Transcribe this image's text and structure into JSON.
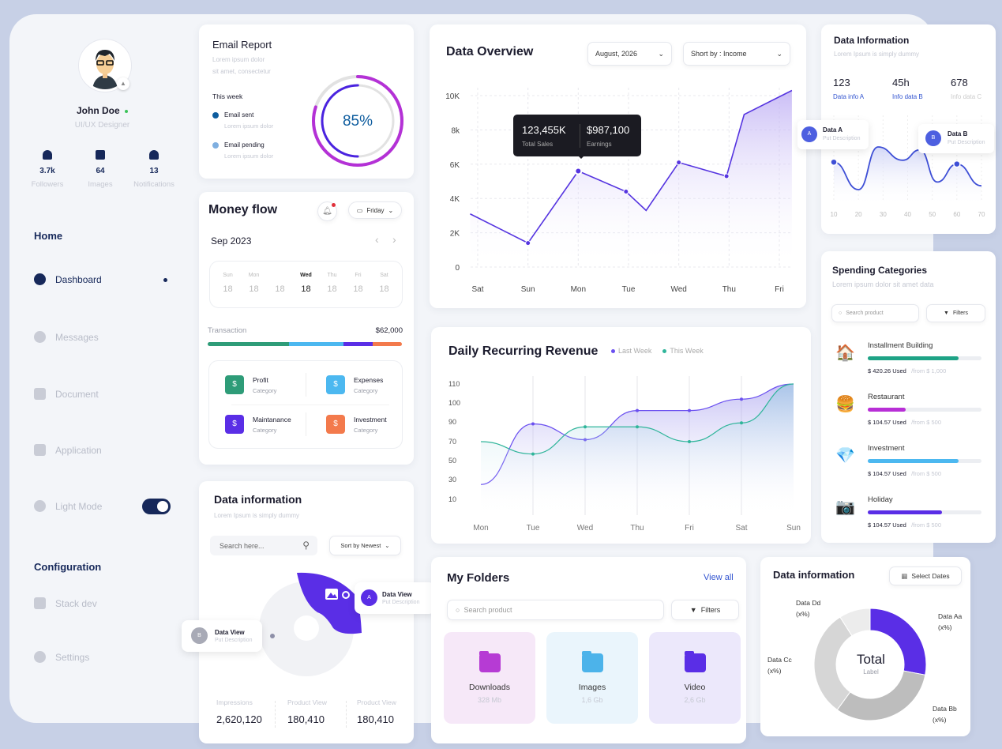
{
  "profile": {
    "name": "John Doe",
    "role": "UI/UX Designer",
    "stats": [
      {
        "value": "3.7k",
        "label": "Followers",
        "icon": "user-icon"
      },
      {
        "value": "64",
        "label": "Images",
        "icon": "image-icon"
      },
      {
        "value": "13",
        "label": "Notifications",
        "icon": "bell-icon"
      }
    ]
  },
  "sidebar": {
    "home_heading": "Home",
    "items": [
      {
        "label": "Dashboard",
        "icon": "home-icon",
        "active": true
      },
      {
        "label": "Messages",
        "icon": "lightning-icon"
      },
      {
        "label": "Document",
        "icon": "document-icon"
      },
      {
        "label": "Application",
        "icon": "grid-icon"
      },
      {
        "label": "Light Mode",
        "icon": "contrast-icon",
        "toggle": true
      }
    ],
    "config_heading": "Configuration",
    "config_items": [
      {
        "label": "Stack dev",
        "icon": "layers-icon"
      },
      {
        "label": "Settings",
        "icon": "gear-icon"
      }
    ]
  },
  "email_report": {
    "title": "Email Report",
    "desc1": "Lorem ipsum dolor",
    "desc2": "sit amet, consectetur",
    "week": "This week",
    "items": [
      {
        "label": "Email sent",
        "desc": "Lorem ipsum dolor",
        "color": "#0d5c9e"
      },
      {
        "label": "Email pending",
        "desc": "Lorem ipsum dolor",
        "color": "#7fafe0"
      }
    ],
    "percent": "85%",
    "outer_fill": 0.8,
    "inner_fill": 0.5
  },
  "money_flow": {
    "title": "Money flow",
    "day_select": "Friday",
    "month": "Sep 2023",
    "days": [
      {
        "d": "Sun",
        "n": "18"
      },
      {
        "d": "Mon",
        "n": "18"
      },
      {
        "d": "",
        "n": "18"
      },
      {
        "d": "Wed",
        "n": "18",
        "active": true
      },
      {
        "d": "Thu",
        "n": "18"
      },
      {
        "d": "Fri",
        "n": "18"
      },
      {
        "d": "Sat",
        "n": "18"
      }
    ],
    "transaction_label": "Transaction",
    "transaction_value": "$62,000",
    "segments": [
      {
        "share": 0.42,
        "color": "#2e9c78"
      },
      {
        "share": 0.28,
        "color": "#4cb8f0"
      },
      {
        "share": 0.15,
        "color": "#5a2ee6"
      },
      {
        "share": 0.15,
        "color": "#f37a4c"
      }
    ],
    "categories": [
      {
        "name": "Profit",
        "sub": "Category",
        "color": "#2e9c78",
        "icon": "dollar-icon"
      },
      {
        "name": "Expenses",
        "sub": "Category",
        "color": "#4cb8f0",
        "icon": "refund-icon"
      },
      {
        "name": "Maintanance",
        "sub": "Category",
        "color": "#5a2ee6",
        "icon": "building-icon"
      },
      {
        "name": "Investment",
        "sub": "Category",
        "color": "#f37a4c",
        "icon": "money-bag-icon"
      }
    ]
  },
  "data_info_left": {
    "title": "Data information",
    "subtitle": "Lorem Ipsum is simply dummy",
    "search_placeholder": "Search here...",
    "sort": "Sort by Newest",
    "callout_a": {
      "badge": "A",
      "title": "Data View",
      "desc": "Put Description"
    },
    "callout_b": {
      "badge": "B",
      "title": "Data View",
      "desc": "Put Description"
    },
    "stats": [
      {
        "label": "Impressions",
        "value": "2,620,120"
      },
      {
        "label": "Product View",
        "value": "180,410"
      },
      {
        "label": "Product View",
        "value": "180,410"
      }
    ]
  },
  "data_overview": {
    "title": "Data Overview",
    "date_select": "August, 2026",
    "sort_select": "Short by : Income",
    "tooltip": {
      "sales": "123,455K",
      "sales_label": "Total Sales",
      "earnings": "$987,100",
      "earnings_label": "Earnings"
    }
  },
  "drr": {
    "title": "Daily Recurring Revenue",
    "legend": [
      {
        "label": "Last Week",
        "color": "#6a4ff0"
      },
      {
        "label": "This Week",
        "color": "#2fb59a"
      }
    ]
  },
  "data_info_right": {
    "title": "Data Information",
    "subtitle": "Lorem Ipsum is simply dummy",
    "stats": [
      {
        "value": "123",
        "label": "Data info A"
      },
      {
        "value": "45h",
        "label": "Info data B"
      },
      {
        "value": "678",
        "label": "Info data C"
      }
    ],
    "callout_a": {
      "badge": "A",
      "title": "Data A",
      "desc": "Put Description"
    },
    "callout_b": {
      "badge": "B",
      "title": "Data B",
      "desc": "Put Description"
    }
  },
  "spending": {
    "title": "Spending Categories",
    "subtitle": "Lorem ipsum dolor sit amet data",
    "search_placeholder": "Search product",
    "filters": "Filters",
    "items": [
      {
        "name": "Installment Building",
        "used": "$ 420.26 Used",
        "from": "/from $ 1,000",
        "fill": 0.8,
        "color": "#1ea386",
        "emoji": "🏠",
        "icon": "house-icon"
      },
      {
        "name": "Restaurant",
        "used": "$ 104.57 Used",
        "from": "/from $ 500",
        "fill": 0.33,
        "color": "#b82fd6",
        "emoji": "🍔",
        "icon": "burger-icon"
      },
      {
        "name": "Investment",
        "used": "$ 104.57 Used",
        "from": "/from $ 500",
        "fill": 0.8,
        "color": "#4cb8f0",
        "emoji": "💎",
        "icon": "diamond-icon"
      },
      {
        "name": "Holiday",
        "used": "$ 104.57 Used",
        "from": "/from $ 500",
        "fill": 0.65,
        "color": "#5a2ee6",
        "emoji": "📷",
        "icon": "camera-icon"
      }
    ]
  },
  "folders": {
    "title": "My Folders",
    "view_all": "View all",
    "search_placeholder": "Search product",
    "filters": "Filters",
    "items": [
      {
        "name": "Downloads",
        "size": "328 Mb",
        "bg": "#f6e8f8",
        "color": "#b63bd4"
      },
      {
        "name": "Images",
        "size": "1,6 Gb",
        "bg": "#eaf5fc",
        "color": "#4cb3ea"
      },
      {
        "name": "Video",
        "size": "2,6 Gb",
        "bg": "#ece8fb",
        "color": "#5a2ee6"
      }
    ]
  },
  "donut_card": {
    "title": "Data information",
    "select_dates": "Select Dates",
    "center": "Total",
    "center_sub": "Label"
  },
  "chart_data": [
    {
      "id": "data_overview",
      "type": "area",
      "x_categories": [
        "Sat",
        "Sun",
        "Mon",
        "Tue",
        "Wed",
        "Thu",
        "Fri"
      ],
      "y_ticks": [
        "0",
        "2K",
        "4K",
        "6K",
        "8k",
        "10K"
      ],
      "ylim": [
        0,
        10.8
      ],
      "unit": "K",
      "points": [
        [
          -0.15,
          3.1
        ],
        [
          1,
          1.4
        ],
        [
          2,
          5.6
        ],
        [
          2.95,
          4.4
        ],
        [
          3.35,
          3.3
        ],
        [
          4,
          6.1
        ],
        [
          4.95,
          5.3
        ],
        [
          5.3,
          8.9
        ],
        [
          6.25,
          10.3
        ]
      ],
      "highlight_index": 2
    },
    {
      "id": "daily_recurring_revenue",
      "type": "line",
      "x_categories": [
        "Mon",
        "Tue",
        "Wed",
        "Thu",
        "Fri",
        "Sat",
        "Sun"
      ],
      "y_ticks": [
        "10",
        "30",
        "50",
        "70",
        "90",
        "100",
        "110"
      ],
      "series": [
        {
          "name": "Last Week",
          "values": [
            25,
            88,
            72,
            96,
            96,
            102,
            110
          ]
        },
        {
          "name": "This Week",
          "values": [
            70,
            57,
            85,
            85,
            70,
            89,
            110
          ]
        }
      ]
    },
    {
      "id": "data_information_mini",
      "type": "area",
      "x_ticks": [
        "10",
        "20",
        "30",
        "40",
        "50",
        "60",
        "70"
      ],
      "points": [
        [
          10,
          54
        ],
        [
          20,
          25
        ],
        [
          28,
          70
        ],
        [
          38,
          56
        ],
        [
          45,
          67
        ],
        [
          52,
          33
        ],
        [
          60,
          52
        ],
        [
          70,
          29
        ]
      ]
    },
    {
      "id": "data_information_donut",
      "type": "pie",
      "labels": [
        "Data Aa",
        "Data Bb",
        "Data Cc",
        "Data Dd"
      ],
      "value_labels": [
        "(x%)",
        "(x%)",
        "(x%)",
        "(x%)"
      ],
      "values": [
        28,
        32,
        31,
        9
      ],
      "colors": [
        "#5a2ee6",
        "#bdbdbd",
        "#d6d6d6",
        "#ececec"
      ]
    }
  ]
}
